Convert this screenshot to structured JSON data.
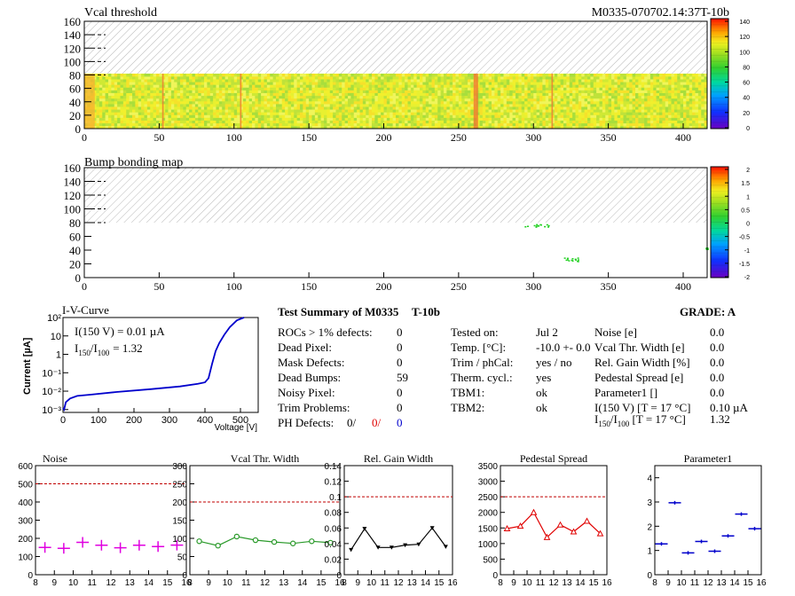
{
  "header": {
    "vcal_title": "Vcal threshold",
    "module_id": "M0335-070702.14:37T-10b",
    "bump_title": "Bump bonding map"
  },
  "maps": {
    "x_ticks": [
      "0",
      "50",
      "100",
      "150",
      "200",
      "250",
      "300",
      "350",
      "400"
    ],
    "y_ticks": [
      "0",
      "20",
      "40",
      "60",
      "80",
      "100",
      "120",
      "140",
      "160"
    ],
    "vcal_colorbar_ticks": [
      "0",
      "20",
      "40",
      "60",
      "80",
      "100",
      "120",
      "140"
    ],
    "bump_colorbar_ticks": [
      "-2",
      "-1.5",
      "-1",
      "-0.5",
      "0",
      "0.5",
      "1",
      "1.5",
      "2"
    ],
    "columns": 416,
    "rows": 160,
    "active_rows": 80,
    "vcal_column_bands": [
      {
        "from": 0,
        "to": 7,
        "level": "orange"
      },
      {
        "from": 52,
        "to": 53,
        "level": "red"
      },
      {
        "from": 104,
        "to": 105,
        "level": "red"
      },
      {
        "from": 260,
        "to": 263,
        "level": "red"
      },
      {
        "from": 312,
        "to": 313,
        "level": "red"
      }
    ],
    "bump_defect_clusters": [
      {
        "x": [
          294,
          310
        ],
        "y": [
          74,
          78
        ]
      },
      {
        "x": [
          320,
          330
        ],
        "y": [
          24,
          30
        ]
      },
      {
        "x": [
          415,
          416
        ],
        "y": [
          42,
          44
        ]
      }
    ]
  },
  "iv": {
    "title": "I-V-Curve",
    "ylabel": "Current [µA]",
    "xlabel": "Voltage [V]",
    "x_ticks": [
      "0",
      "100",
      "200",
      "300",
      "400",
      "500"
    ],
    "y_ticks": [
      "10⁻³",
      "10⁻²",
      "10⁻¹",
      "1",
      "10",
      "10²"
    ],
    "i150": "I(150 V) = 0.01 µA",
    "ratio_main": "I",
    "ratio_sub1": "150",
    "ratio_mid": "/I",
    "ratio_sub2": "100",
    "ratio_val": "=  1.32",
    "curve": [
      [
        0,
        0.0012
      ],
      [
        3,
        0.001
      ],
      [
        8,
        0.0025
      ],
      [
        20,
        0.004
      ],
      [
        40,
        0.0055
      ],
      [
        80,
        0.0065
      ],
      [
        150,
        0.009
      ],
      [
        250,
        0.013
      ],
      [
        330,
        0.018
      ],
      [
        380,
        0.025
      ],
      [
        400,
        0.03
      ],
      [
        410,
        0.05
      ],
      [
        420,
        0.3
      ],
      [
        430,
        1.5
      ],
      [
        440,
        4
      ],
      [
        455,
        12
      ],
      [
        470,
        30
      ],
      [
        490,
        70
      ],
      [
        510,
        110
      ]
    ]
  },
  "summary": {
    "title": "Test Summary of M0335",
    "tag": "T-10b",
    "grade_label": "GRADE:  A",
    "left": [
      {
        "label": "ROCs > 1% defects:",
        "value": "0"
      },
      {
        "label": "Dead Pixel:",
        "value": "0"
      },
      {
        "label": "Mask Defects:",
        "value": "0"
      },
      {
        "label": "Dead Bumps:",
        "value": "59"
      },
      {
        "label": "Noisy Pixel:",
        "value": "0"
      },
      {
        "label": "Trim Problems:",
        "value": "0"
      }
    ],
    "ph_label": "PH Defects:",
    "ph_v1": "0/",
    "ph_v2": "0/",
    "ph_v3": "0",
    "mid": [
      {
        "label": "Tested on:",
        "value": "Jul 2"
      },
      {
        "label": "Temp. [°C]:",
        "value": "-10.0 +- 0.0"
      },
      {
        "label": "Trim / phCal:",
        "value": "yes / no"
      },
      {
        "label": "Therm. cycl.:",
        "value": "yes"
      },
      {
        "label": "TBM1:",
        "value": "ok"
      },
      {
        "label": "TBM2:",
        "value": "ok"
      }
    ],
    "right": [
      {
        "label": "Noise [e]",
        "value": "0.0"
      },
      {
        "label": "Vcal Thr. Width [e]",
        "value": "0.0"
      },
      {
        "label": "Rel. Gain Width [%]",
        "value": "0.0"
      },
      {
        "label": "Pedestal Spread [e]",
        "value": "0.0"
      },
      {
        "label": "Parameter1 []",
        "value": "0.0"
      },
      {
        "label": "I(150 V) [T = 17 °C]",
        "value": "0.10 µA"
      }
    ],
    "ratio_row": {
      "pre": "I",
      "s1": "150",
      "mid": "/I",
      "s2": "100",
      "post": "   [T = 17 °C]",
      "value": "1.32"
    }
  },
  "chart_data": [
    {
      "type": "heatmap",
      "title": "Vcal threshold",
      "xlim": [
        0,
        416
      ],
      "ylim": [
        0,
        160
      ],
      "zlim": [
        0,
        140
      ],
      "active_rows": [
        0,
        80
      ],
      "hatched_rows": [
        80,
        160
      ]
    },
    {
      "type": "heatmap",
      "title": "Bump bonding map",
      "xlim": [
        0,
        416
      ],
      "ylim": [
        0,
        160
      ],
      "zlim": [
        -2,
        2
      ],
      "active_rows": [
        0,
        80
      ],
      "hatched_rows": [
        80,
        160
      ]
    },
    {
      "type": "line",
      "title": "I-V-Curve",
      "xlabel": "Voltage [V]",
      "ylabel": "Current [µA]",
      "xlim": [
        0,
        550
      ],
      "ylim": [
        0.0007,
        100
      ],
      "yscale": "log"
    },
    {
      "type": "scatter",
      "title": "Noise",
      "x": [
        8.5,
        9.5,
        10.5,
        11.5,
        12.5,
        13.5,
        14.5,
        15.5
      ],
      "values": [
        150,
        145,
        178,
        162,
        148,
        162,
        155,
        163
      ],
      "marker": "cross",
      "xlim": [
        8,
        16
      ],
      "ylim": [
        0,
        600
      ],
      "y_ticks": [
        "0",
        "100",
        "200",
        "300",
        "400",
        "500",
        "600"
      ],
      "limit": 500,
      "color": "#e000e0"
    },
    {
      "type": "line",
      "title": "Vcal Thr. Width",
      "x": [
        8.5,
        9.5,
        10.5,
        11.5,
        12.5,
        13.5,
        14.5,
        15.5
      ],
      "values": [
        92,
        80,
        105,
        95,
        90,
        86,
        92,
        88
      ],
      "marker": "circle",
      "xlim": [
        8,
        16
      ],
      "ylim": [
        0,
        300
      ],
      "y_ticks": [
        "0",
        "50",
        "100",
        "150",
        "200",
        "250",
        "300"
      ],
      "limit": 200,
      "color": "#2a9a2a"
    },
    {
      "type": "line",
      "title": "Rel. Gain Width",
      "x": [
        8.5,
        9.5,
        10.5,
        11.5,
        12.5,
        13.5,
        14.5,
        15.5
      ],
      "values": [
        0.032,
        0.059,
        0.035,
        0.035,
        0.038,
        0.039,
        0.06,
        0.036
      ],
      "marker": "triangle-down",
      "xlim": [
        8,
        16
      ],
      "ylim": [
        0,
        0.14
      ],
      "y_ticks": [
        "0",
        "0.02",
        "0.04",
        "0.06",
        "0.08",
        "0.1",
        "0.12",
        "0.14"
      ],
      "limit": 0.1,
      "color": "#000000"
    },
    {
      "type": "line",
      "title": "Pedestal Spread",
      "x": [
        8.5,
        9.5,
        10.5,
        11.5,
        12.5,
        13.5,
        14.5,
        15.5
      ],
      "values": [
        1480,
        1560,
        2000,
        1200,
        1600,
        1380,
        1720,
        1320
      ],
      "marker": "triangle",
      "xlim": [
        8,
        16
      ],
      "ylim": [
        0,
        3500
      ],
      "y_ticks": [
        "0",
        "500",
        "1000",
        "1500",
        "2000",
        "2500",
        "3000",
        "3500"
      ],
      "limit": 2500,
      "color": "#e00000"
    },
    {
      "type": "scatter",
      "title": "Parameter1",
      "x": [
        8.5,
        9.5,
        10.5,
        11.5,
        12.5,
        13.5,
        14.5,
        15.5
      ],
      "values": [
        1.27,
        2.97,
        0.9,
        1.37,
        0.97,
        1.6,
        2.5,
        1.9
      ],
      "marker": "hbar",
      "xlim": [
        8,
        16
      ],
      "ylim": [
        0,
        4.5
      ],
      "y_ticks": [
        "0",
        "1",
        "2",
        "3",
        "4"
      ],
      "color": "#0000cc"
    }
  ],
  "small_x_ticks": [
    "8",
    "9",
    "10",
    "11",
    "12",
    "13",
    "14",
    "15",
    "16"
  ]
}
